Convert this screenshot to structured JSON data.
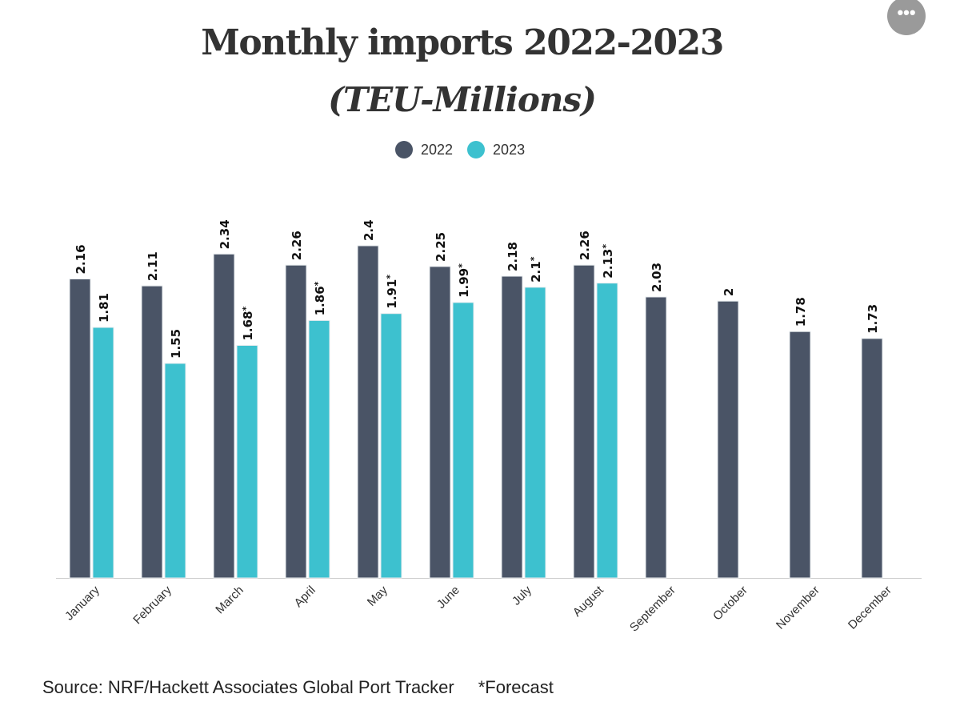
{
  "more_button_label": "•••",
  "chart_data": {
    "type": "bar",
    "title": "Monthly imports 2022-2023",
    "subtitle": "(TEU-Millions)",
    "categories": [
      "January",
      "February",
      "March",
      "April",
      "May",
      "June",
      "July",
      "August",
      "September",
      "October",
      "November",
      "December"
    ],
    "series": [
      {
        "name": "2022",
        "color": "#4a5466",
        "values": [
          2.16,
          2.11,
          2.34,
          2.26,
          2.4,
          2.25,
          2.18,
          2.26,
          2.03,
          2,
          1.78,
          1.73
        ],
        "forecast": [
          false,
          false,
          false,
          false,
          false,
          false,
          false,
          false,
          false,
          false,
          false,
          false
        ]
      },
      {
        "name": "2023",
        "color": "#3dc1cf",
        "values": [
          1.81,
          1.55,
          1.68,
          1.86,
          1.91,
          1.99,
          2.1,
          2.13,
          null,
          null,
          null,
          null
        ],
        "forecast": [
          false,
          false,
          true,
          true,
          true,
          true,
          true,
          true,
          false,
          false,
          false,
          false
        ]
      }
    ],
    "ylim": [
      0,
      2.4
    ],
    "y_axis_shown": false,
    "grid": false,
    "legend_position": "top-center",
    "data_labels": true,
    "source": "Source: NRF/Hackett Associates Global Port Tracker",
    "footnote": "*Forecast"
  }
}
